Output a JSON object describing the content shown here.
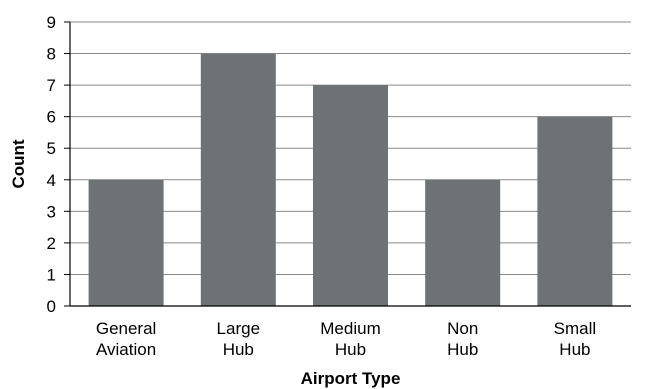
{
  "chart_data": {
    "type": "bar",
    "categories": [
      [
        "General",
        "Aviation"
      ],
      [
        "Large",
        "Hub"
      ],
      [
        "Medium",
        "Hub"
      ],
      [
        "Non",
        "Hub"
      ],
      [
        "Small",
        "Hub"
      ]
    ],
    "values": [
      4,
      8,
      7,
      4,
      6
    ],
    "xlabel": "Airport Type",
    "ylabel": "Count",
    "ylim": [
      0,
      9
    ],
    "yticks": [
      "0",
      "1",
      "2",
      "3",
      "4",
      "5",
      "6",
      "7",
      "8",
      "9"
    ],
    "grid": true,
    "bar_color": "#6d7375",
    "grid_color": "#8a8a8a"
  }
}
